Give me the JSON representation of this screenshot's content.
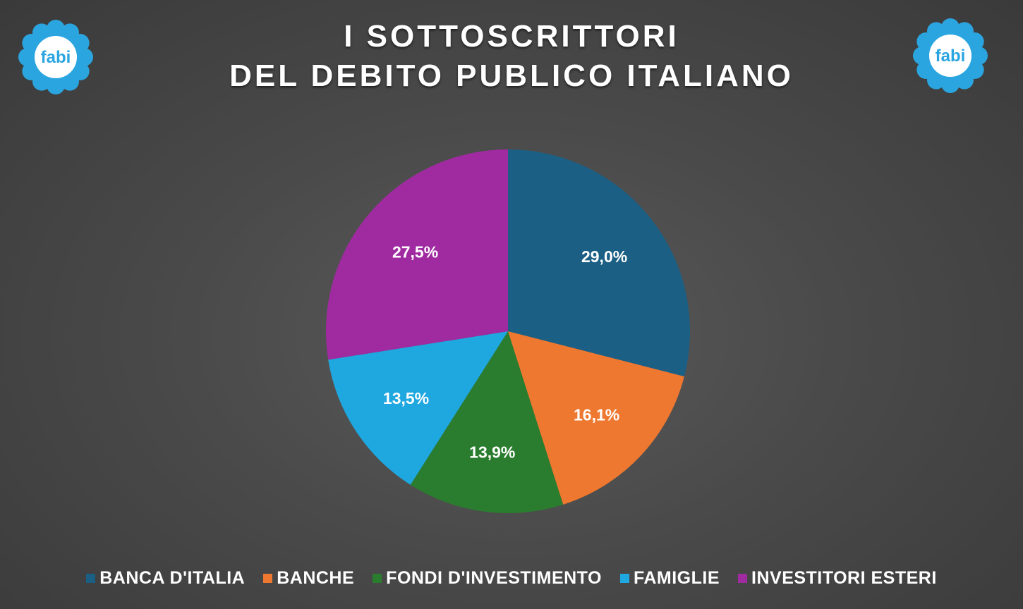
{
  "title_line1": "I SOTTOSCRITTORI",
  "title_line2": "DEL DEBITO PUBLICO ITALIANO",
  "logo_text": "fabi",
  "colors": {
    "background": "#4a4a4a",
    "logo_blue": "#2aa5e0"
  },
  "chart_data": {
    "type": "pie",
    "categories": [
      "BANCA D'ITALIA",
      "BANCHE",
      "FONDI D'INVESTIMENTO",
      "FAMIGLIE",
      "INVESTITORI ESTERI"
    ],
    "values": [
      29.0,
      16.1,
      13.9,
      13.5,
      27.5
    ],
    "labels": [
      "29,0%",
      "16,1%",
      "13,9%",
      "13,5%",
      "27,5%"
    ],
    "colors": [
      "#1b5f85",
      "#ee7830",
      "#2a7d2e",
      "#1fa7df",
      "#a02ba0"
    ],
    "legend_position": "bottom",
    "start": "top, clockwise"
  }
}
